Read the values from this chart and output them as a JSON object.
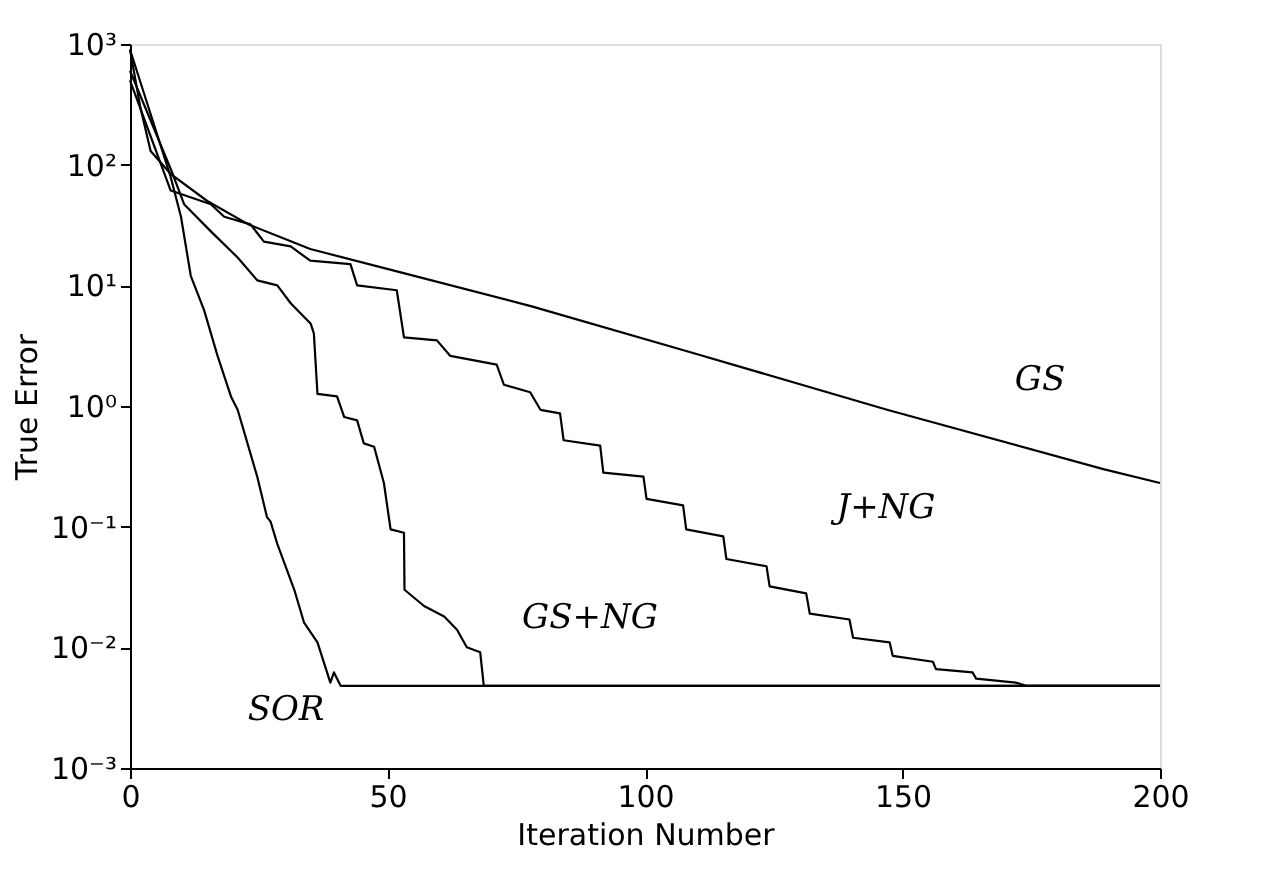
{
  "chart_data": {
    "type": "line",
    "xlabel": "Iteration Number",
    "ylabel": "True Error",
    "log": "y",
    "grid": false,
    "legend": false,
    "line_style": "solid",
    "marker": "none",
    "xlim": [
      0,
      200
    ],
    "xticks": [
      0,
      50,
      100,
      150,
      200
    ],
    "ylim": [
      0.001,
      1000
    ],
    "yticks": [
      {
        "value": 0.001,
        "label": "10⁻³"
      },
      {
        "value": 0.01,
        "label": "10⁻²"
      },
      {
        "value": 0.1,
        "label": "10⁻¹"
      },
      {
        "value": 1,
        "label": "10⁰"
      },
      {
        "value": 10,
        "label": "10¹"
      },
      {
        "value": 100,
        "label": "10²"
      },
      {
        "value": 1000,
        "label": "10³"
      }
    ],
    "series": [
      {
        "name": "GS",
        "color": "#000000",
        "x": [
          0,
          2,
          4,
          8,
          15,
          23,
          35,
          52,
          78,
          110,
          147,
          189,
          200
        ],
        "values": [
          900,
          300,
          130,
          83,
          50,
          32,
          20,
          13,
          6.7,
          2.7,
          0.93,
          0.3,
          0.23
        ]
      },
      {
        "name": "J+NG",
        "color": "#000000",
        "x": [
          0,
          7.9,
          15.7,
          18.3,
          23.4,
          26,
          31.2,
          35,
          42.8,
          44.1,
          51.8,
          53.2,
          59.6,
          62.2,
          71.2,
          72.6,
          77.7,
          79.7,
          83.5,
          84.2,
          91.3,
          91.9,
          99.7,
          100.3,
          107.4,
          108,
          115.2,
          115.8,
          123.6,
          124.2,
          131.3,
          132,
          139.7,
          140.4,
          147.5,
          148.1,
          155.9,
          156.5,
          163.6,
          164.3,
          172,
          174,
          200
        ],
        "values": [
          500,
          61,
          47,
          37,
          32,
          23,
          21,
          16,
          15,
          10,
          9.1,
          3.7,
          3.5,
          2.6,
          2.2,
          1.5,
          1.3,
          0.93,
          0.87,
          0.52,
          0.47,
          0.28,
          0.26,
          0.17,
          0.15,
          0.095,
          0.083,
          0.054,
          0.047,
          0.032,
          0.028,
          0.019,
          0.017,
          0.012,
          0.011,
          0.0085,
          0.0076,
          0.0066,
          0.0062,
          0.0055,
          0.0051,
          0.0048,
          0.0048
        ]
      },
      {
        "name": "GS+NG",
        "color": "#000000",
        "x": [
          0,
          8,
          10.5,
          15.7,
          20.9,
          24.7,
          28.6,
          31.2,
          35.1,
          35.7,
          36.4,
          40.2,
          41.6,
          44.1,
          45.4,
          47.4,
          49.3,
          50.6,
          53.2,
          53.3,
          57.1,
          61,
          63.5,
          65.4,
          68,
          68.7,
          200
        ],
        "values": [
          600,
          90,
          47,
          28,
          17,
          11,
          10,
          7.1,
          4.8,
          4,
          1.26,
          1.2,
          0.81,
          0.76,
          0.49,
          0.46,
          0.23,
          0.095,
          0.089,
          0.03,
          0.022,
          0.018,
          0.014,
          0.01,
          0.0091,
          0.0048,
          0.0048
        ]
      },
      {
        "name": "SOR",
        "color": "#000000",
        "x": [
          0,
          7.9,
          9.9,
          11.8,
          14.4,
          17,
          19.6,
          20.9,
          24.7,
          26.6,
          27.3,
          28.6,
          31.9,
          33.8,
          36.4,
          38.9,
          39.6,
          40.9,
          200
        ],
        "values": [
          900,
          79,
          37,
          12,
          6.2,
          2.6,
          1.2,
          0.93,
          0.26,
          0.12,
          0.11,
          0.072,
          0.03,
          0.016,
          0.011,
          0.0051,
          0.0062,
          0.0048,
          0.0048
        ]
      }
    ]
  }
}
